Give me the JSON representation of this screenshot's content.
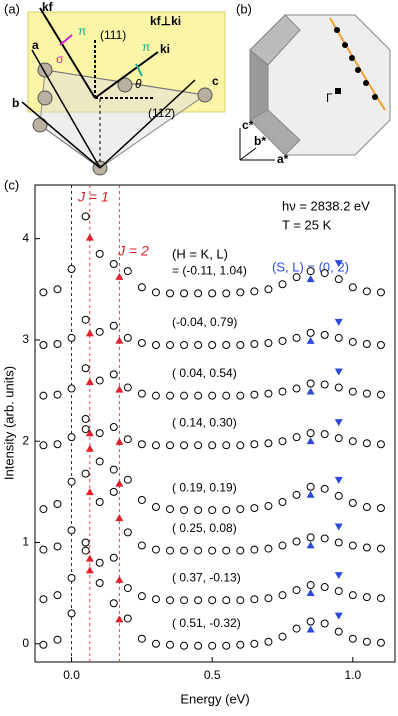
{
  "figure": {
    "panel_labels": [
      "(a)",
      "(b)",
      "(c)"
    ],
    "panel_a": {
      "kf": "kf",
      "ki": "ki",
      "perp": "kf⊥ki",
      "dir111": "(111)",
      "dir112": "(112̄)",
      "theta": "θ",
      "pi1": "π",
      "pi2": "π",
      "sigma": "σ",
      "a": "a",
      "b": "b",
      "c": "c"
    },
    "panel_b": {
      "c_star": "c*",
      "b_star": "b*",
      "a_star": "a*",
      "gamma": "Γ"
    }
  },
  "chart_data": {
    "type": "scatter",
    "xlabel": "Energy (eV)",
    "ylabel": "Intensity (arb. units)",
    "xlim": [
      -0.13,
      1.15
    ],
    "ylim": [
      -0.18,
      4.53
    ],
    "xticks": [
      {
        "value": 0,
        "label": "0.0"
      },
      0.5,
      {
        "value": 1,
        "label": "1.0"
      }
    ],
    "yticks": [
      0,
      1,
      2,
      3,
      4
    ],
    "annotations": {
      "j1": "J = 1",
      "j2": "J = 2",
      "hv": "hν = 2838.2 eV",
      "temp": "T = 25 K",
      "sl": "(S, L) = (0, 2)",
      "hkl": "(H = K, L)"
    },
    "reference_lines": [
      0,
      0.065,
      0.17
    ],
    "peak_markers": {
      "j1": 0.065,
      "j2": 0.17,
      "s_up": 0.85,
      "s_down": 0.95
    },
    "annotation_colors": {
      "j": "#e0202a",
      "s": "#2a4bd7"
    },
    "marker_color": "#000000",
    "x": [
      -0.1,
      -0.05,
      0,
      0.05,
      0.1,
      0.15,
      0.2,
      0.25,
      0.3,
      0.35,
      0.4,
      0.45,
      0.5,
      0.55,
      0.6,
      0.65,
      0.7,
      0.75,
      0.8,
      0.85,
      0.9,
      0.95,
      1.0,
      1.05,
      1.1
    ],
    "series": [
      {
        "name": "= (-0.11,  1.04)",
        "values": [
          3.47,
          3.5,
          3.7,
          4.22,
          3.85,
          3.75,
          3.68,
          3.52,
          3.47,
          3.46,
          3.46,
          3.46,
          3.46,
          3.46,
          3.47,
          3.48,
          3.5,
          3.55,
          3.62,
          3.68,
          3.66,
          3.6,
          3.52,
          3.48,
          3.47
        ]
      },
      {
        "name": "(-0.04,  0.79)",
        "values": [
          2.95,
          2.96,
          3.02,
          3.2,
          3.08,
          3.14,
          3.02,
          2.97,
          2.95,
          2.95,
          2.95,
          2.95,
          2.95,
          2.95,
          2.95,
          2.96,
          2.97,
          2.99,
          3.02,
          3.07,
          3.05,
          3.02,
          2.98,
          2.96,
          2.95
        ]
      },
      {
        "name": "( 0.04,  0.54)",
        "values": [
          2.45,
          2.46,
          2.52,
          2.72,
          2.6,
          2.66,
          2.53,
          2.47,
          2.45,
          2.45,
          2.45,
          2.45,
          2.45,
          2.45,
          2.45,
          2.46,
          2.47,
          2.49,
          2.52,
          2.57,
          2.56,
          2.53,
          2.49,
          2.47,
          2.46
        ]
      },
      {
        "name": "( 0.14,  0.30)",
        "values": [
          1.96,
          1.97,
          2.04,
          2.22,
          2.08,
          2.14,
          2.02,
          1.97,
          1.96,
          1.96,
          1.96,
          1.96,
          1.96,
          1.96,
          1.96,
          1.97,
          1.98,
          2.0,
          2.04,
          2.08,
          2.07,
          2.03,
          2.0,
          1.98,
          1.97
        ]
      },
      {
        "name": "( 0.19,  0.19)",
        "values": [
          1.33,
          1.38,
          1.6,
          2.12,
          1.8,
          1.72,
          1.62,
          1.42,
          1.35,
          1.33,
          1.32,
          1.32,
          1.32,
          1.32,
          1.33,
          1.34,
          1.36,
          1.4,
          1.47,
          1.55,
          1.53,
          1.46,
          1.39,
          1.35,
          1.34
        ]
      },
      {
        "name": "( 0.25,  0.08)",
        "values": [
          0.93,
          0.96,
          1.12,
          1.68,
          1.4,
          1.5,
          1.1,
          0.97,
          0.93,
          0.92,
          0.92,
          0.92,
          0.92,
          0.92,
          0.92,
          0.93,
          0.94,
          0.97,
          1.01,
          1.05,
          1.04,
          1.0,
          0.97,
          0.95,
          0.94
        ]
      },
      {
        "name": "( 0.37, -0.13)",
        "values": [
          0.44,
          0.48,
          0.65,
          1.0,
          0.8,
          0.85,
          0.55,
          0.47,
          0.44,
          0.43,
          0.43,
          0.43,
          0.43,
          0.43,
          0.43,
          0.44,
          0.45,
          0.48,
          0.53,
          0.58,
          0.56,
          0.52,
          0.48,
          0.46,
          0.45
        ]
      },
      {
        "name": "( 0.51, -0.32)",
        "values": [
          -0.01,
          0.04,
          0.3,
          0.92,
          0.6,
          0.4,
          0.25,
          0.05,
          0.0,
          -0.01,
          -0.02,
          -0.02,
          -0.02,
          -0.02,
          -0.01,
          0.0,
          0.02,
          0.07,
          0.15,
          0.22,
          0.2,
          0.12,
          0.05,
          0.02,
          0.01
        ]
      }
    ]
  }
}
